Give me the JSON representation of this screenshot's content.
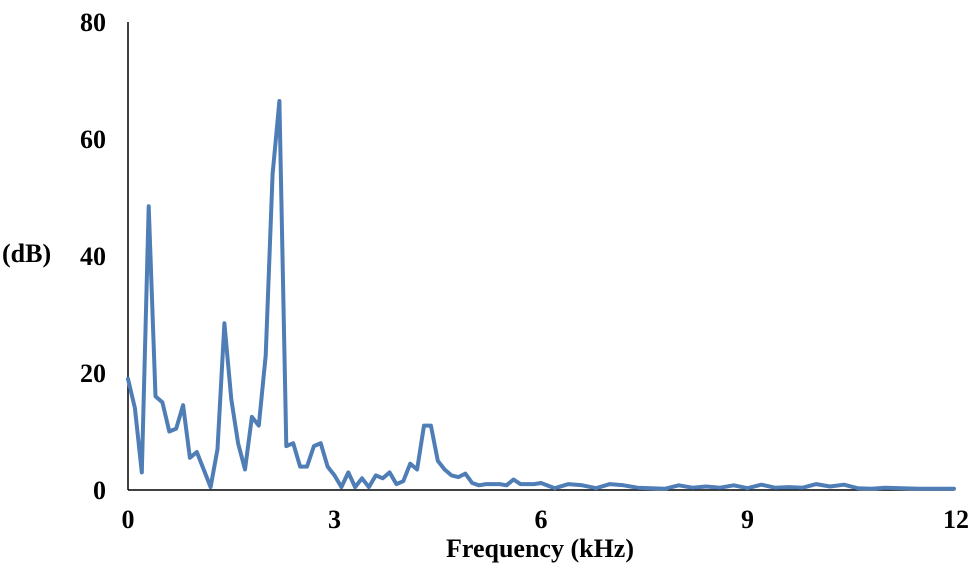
{
  "chart_data": {
    "type": "line",
    "title": "",
    "xlabel": "Frequency (kHz)",
    "ylabel": "(dB)",
    "xlim": [
      0,
      12
    ],
    "ylim": [
      0,
      80
    ],
    "xticks": [
      0,
      3,
      6,
      9,
      12
    ],
    "yticks": [
      0,
      20,
      40,
      60,
      80
    ],
    "grid": false,
    "colors": {
      "line": "#4f7db6",
      "axis": "#000000"
    },
    "series": [
      {
        "x": [
          0.0,
          0.1,
          0.2,
          0.3,
          0.4,
          0.5,
          0.6,
          0.7,
          0.8,
          0.9,
          1.0,
          1.1,
          1.2,
          1.3,
          1.4,
          1.5,
          1.6,
          1.7,
          1.8,
          1.9,
          2.0,
          2.1,
          2.2,
          2.3,
          2.4,
          2.5,
          2.6,
          2.7,
          2.8,
          2.9,
          3.0,
          3.1,
          3.2,
          3.3,
          3.4,
          3.5,
          3.6,
          3.7,
          3.8,
          3.9,
          4.0,
          4.1,
          4.2,
          4.3,
          4.4,
          4.5,
          4.6,
          4.7,
          4.8,
          4.9,
          5.0,
          5.1,
          5.2,
          5.3,
          5.4,
          5.5,
          5.6,
          5.7,
          5.8,
          5.9,
          6.0,
          6.2,
          6.4,
          6.6,
          6.8,
          7.0,
          7.2,
          7.4,
          7.6,
          7.8,
          8.0,
          8.2,
          8.4,
          8.6,
          8.8,
          9.0,
          9.2,
          9.4,
          9.6,
          9.8,
          10.0,
          10.2,
          10.4,
          10.6,
          10.8,
          11.0,
          11.5,
          12.0
        ],
        "y": [
          19,
          14,
          3,
          48.5,
          16,
          15,
          10,
          10.5,
          14.5,
          5.5,
          6.5,
          3.5,
          0.5,
          7,
          28.5,
          15.5,
          8,
          3.5,
          12.5,
          11,
          23,
          54,
          66.5,
          7.5,
          8,
          4,
          4,
          7.5,
          8,
          4,
          2.5,
          0.5,
          3,
          0.5,
          2,
          0.5,
          2.5,
          2,
          3,
          1,
          1.5,
          4.5,
          3.5,
          11,
          11,
          5,
          3.5,
          2.5,
          2.2,
          2.8,
          1.2,
          0.8,
          1,
          1,
          1,
          0.8,
          1.8,
          1,
          1,
          1,
          1.2,
          0.3,
          1,
          0.8,
          0.3,
          1,
          0.8,
          0.4,
          0.3,
          0.2,
          0.8,
          0.4,
          0.6,
          0.4,
          0.8,
          0.3,
          0.9,
          0.4,
          0.5,
          0.4,
          1,
          0.6,
          0.9,
          0.3,
          0.2,
          0.4,
          0.2,
          0.2
        ]
      }
    ]
  }
}
